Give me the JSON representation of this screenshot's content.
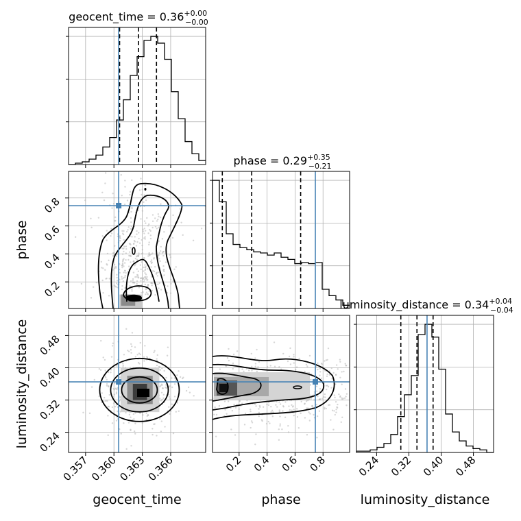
{
  "chart_data": {
    "type": "corner",
    "parameters": [
      "geocent_time",
      "phase",
      "luminosity_distance"
    ],
    "ranges": {
      "geocent_time": [
        0.3552,
        0.3697
      ],
      "phase": [
        0.01,
        0.99
      ],
      "luminosity_distance": [
        0.19,
        0.53
      ]
    },
    "truths": {
      "geocent_time": 0.3605,
      "phase": 0.745,
      "luminosity_distance": 0.365
    },
    "quantiles": {
      "geocent_time": [
        0.3606,
        0.3626,
        0.3645
      ],
      "phase": [
        0.08,
        0.29,
        0.64
      ],
      "luminosity_distance": [
        0.3,
        0.34,
        0.38
      ]
    },
    "titles": [
      {
        "param": "geocent_time",
        "text": "geocent_time = 0.36",
        "sup": "+0.00",
        "sub": "−0.00"
      },
      {
        "param": "phase",
        "text": "phase = 0.29",
        "sup": "+0.35",
        "sub": "−0.21"
      },
      {
        "param": "luminosity_distance",
        "text": "luminosity_distance = 0.34",
        "sup": "+0.04",
        "sub": "−0.04"
      }
    ],
    "axis_labels": {
      "x": [
        "geocent_time",
        "phase",
        "luminosity_distance"
      ],
      "y": [
        "phase",
        "luminosity_distance"
      ]
    },
    "ticks": {
      "geocent_time": {
        "values": [
          0.357,
          0.36,
          0.363,
          0.366
        ],
        "labels": [
          "0.357",
          "0.360",
          "0.363",
          "0.366"
        ]
      },
      "phase": {
        "values": [
          0.2,
          0.4,
          0.6,
          0.8
        ],
        "labels": [
          "0.2",
          "0.4",
          "0.6",
          "0.8"
        ]
      },
      "luminosity_distance": {
        "values": [
          0.24,
          0.32,
          0.4,
          0.48
        ],
        "labels": [
          "0.24",
          "0.32",
          "0.40",
          "0.48"
        ]
      }
    },
    "histograms": {
      "geocent_time": {
        "bin_start": 0.3552,
        "bin_width": 0.000725,
        "counts": [
          0,
          1,
          2,
          4,
          7,
          13,
          20,
          33,
          48,
          66,
          80,
          92,
          95,
          90,
          78,
          54,
          34,
          17,
          8,
          3
        ]
      },
      "phase": {
        "bin_start": 0.01,
        "bin_width": 0.049,
        "counts": [
          120,
          100,
          70,
          60,
          57,
          55,
          53,
          52,
          50,
          52,
          48,
          46,
          42,
          43,
          42,
          43,
          18,
          12,
          8,
          3
        ]
      },
      "luminosity_distance": {
        "bin_start": 0.19,
        "bin_width": 0.017,
        "counts": [
          1,
          1,
          2,
          4,
          7,
          14,
          28,
          45,
          60,
          92,
          100,
          90,
          65,
          30,
          16,
          9,
          5,
          3,
          2,
          0
        ]
      }
    },
    "colors": {
      "line": "#000000",
      "truth": "#4682b4",
      "grid": "#b0b0b0",
      "scatter": "#b4b4b4"
    }
  }
}
